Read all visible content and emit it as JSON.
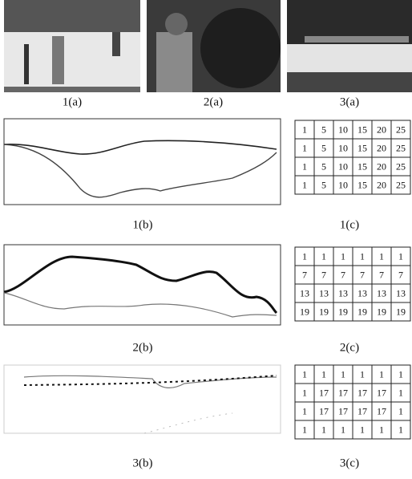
{
  "figure": {
    "images": [
      {
        "label": "1(a)"
      },
      {
        "label": "2(a)"
      },
      {
        "label": "3(a)"
      }
    ],
    "rows": [
      {
        "plot_label": "1(b)",
        "grid_label": "1(c)",
        "grid": [
          [
            1,
            5,
            10,
            15,
            20,
            25
          ],
          [
            1,
            5,
            10,
            15,
            20,
            25
          ],
          [
            1,
            5,
            10,
            15,
            20,
            25
          ],
          [
            1,
            5,
            10,
            15,
            20,
            25
          ]
        ]
      },
      {
        "plot_label": "2(b)",
        "grid_label": "2(c)",
        "grid": [
          [
            1,
            1,
            1,
            1,
            1,
            1
          ],
          [
            7,
            7,
            7,
            7,
            7,
            7
          ],
          [
            13,
            13,
            13,
            13,
            13,
            13
          ],
          [
            19,
            19,
            19,
            19,
            19,
            19
          ]
        ]
      },
      {
        "plot_label": "3(b)",
        "grid_label": "3(c)",
        "grid": [
          [
            1,
            1,
            1,
            1,
            1,
            1
          ],
          [
            1,
            17,
            17,
            17,
            17,
            1
          ],
          [
            1,
            17,
            17,
            17,
            17,
            1
          ],
          [
            1,
            1,
            1,
            1,
            1,
            1
          ]
        ]
      }
    ]
  }
}
